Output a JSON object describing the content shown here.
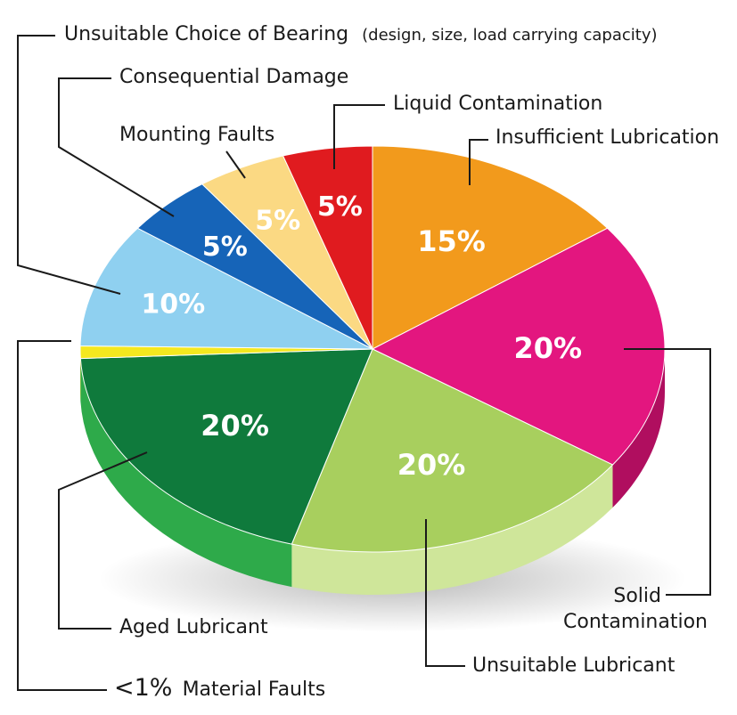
{
  "chart_data": {
    "type": "pie",
    "title": "",
    "slices": [
      {
        "label": "Insufficient Lubrication",
        "value": 15,
        "display": "15%",
        "color": "#f29a1c",
        "side": "#c06f0c"
      },
      {
        "label": "Solid Contamination",
        "value": 20,
        "display": "20%",
        "color": "#e3167f",
        "side": "#b00e5f"
      },
      {
        "label": "Unsuitable Lubricant",
        "value": 20,
        "display": "20%",
        "color": "#a8cf5e",
        "side": "#cfe69a"
      },
      {
        "label": "Aged Lubricant",
        "value": 20,
        "display": "20%",
        "color": "#0f7a3c",
        "side": "#2eaa4a"
      },
      {
        "label": "Material Faults",
        "value": 1,
        "display": "<1%",
        "color": "#f4e81f",
        "side": "#c8bd10"
      },
      {
        "label": "Unsuitable Choice of Bearing",
        "value": 10,
        "display": "10%",
        "color": "#8fd0f0",
        "side": "#5aa8d4"
      },
      {
        "label": "Consequential Damage",
        "value": 5,
        "display": "5%",
        "color": "#1664b8",
        "side": "#0d4a8c"
      },
      {
        "label": "Mounting Faults",
        "value": 5,
        "display": "5%",
        "color": "#fbd983",
        "side": "#e0b94f"
      },
      {
        "label": "Liquid Contamination",
        "value": 5,
        "display": "5%",
        "color": "#e01b1f",
        "side": "#a81215"
      }
    ],
    "legend_placement": "callouts around the pie"
  },
  "labels": {
    "unsuitable_choice": "Unsuitable Choice of Bearing",
    "unsuitable_choice_note": "(design, size, load carrying capacity)",
    "consequential": "Consequential Damage",
    "mounting": "Mounting Faults",
    "liquid": "Liquid Contamination",
    "insufficient": "Insufficient Lubrication",
    "solid_1": "Solid",
    "solid_2": "Contamination",
    "unsuitable_lubricant": "Unsuitable Lubricant",
    "aged": "Aged Lubricant",
    "material_pct": "<1%",
    "material": "Material Faults"
  }
}
